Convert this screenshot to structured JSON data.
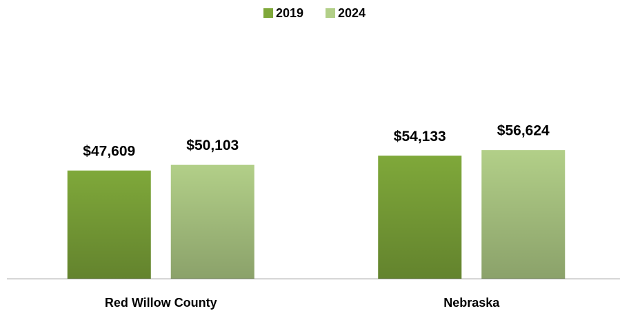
{
  "chart_data": {
    "type": "bar",
    "categories": [
      "Red Willow County",
      "Nebraska"
    ],
    "series": [
      {
        "name": "2019",
        "color": "#7fa83a",
        "values": [
          47609,
          54133
        ],
        "value_labels": [
          "$47,609",
          "$54,133"
        ]
      },
      {
        "name": "2024",
        "color": "#b2cf88",
        "values": [
          50103,
          56624
        ],
        "value_labels": [
          "$50,103",
          "$56,624"
        ]
      }
    ],
    "ylim": [
      0,
      100000
    ],
    "legend": "top",
    "grid": false
  }
}
